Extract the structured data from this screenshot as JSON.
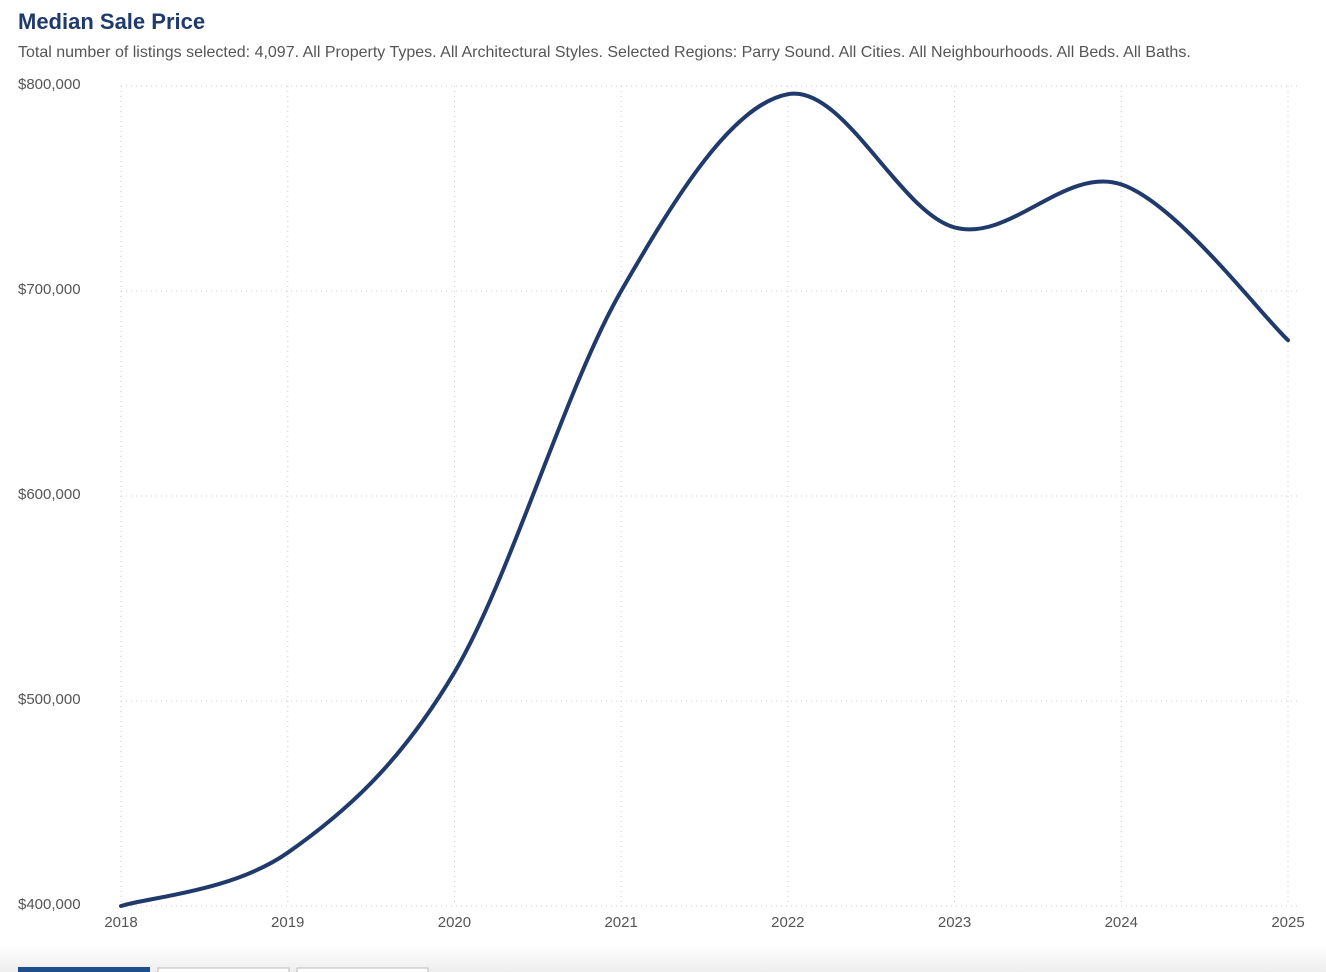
{
  "chart_data": {
    "type": "line",
    "title": "Median Sale Price",
    "subtitle": "Total number of listings selected: 4,097. All Property Types. All Architectural Styles. Selected Regions: Parry Sound. All Cities. All Neighbourhoods. All Beds. All Baths.",
    "x": [
      2018,
      2019,
      2020,
      2021,
      2022,
      2023,
      2024,
      2025
    ],
    "series": [
      {
        "name": "Median Sale Price",
        "color": "#1f3a6b",
        "values": [
          400000,
          426000,
          514000,
          700000,
          796000,
          731000,
          752000,
          676000
        ]
      }
    ],
    "xlim": [
      2018,
      2025
    ],
    "xticks": [
      2018,
      2019,
      2020,
      2021,
      2022,
      2023,
      2024,
      2025
    ],
    "ylim": [
      400000,
      800000
    ],
    "yticks": [
      {
        "value": 400000,
        "label": "$400,000"
      },
      {
        "value": 500000,
        "label": "$500,000"
      },
      {
        "value": 600000,
        "label": "$600,000"
      },
      {
        "value": 700000,
        "label": "$700,000"
      },
      {
        "value": 800000,
        "label": "$800,000"
      }
    ],
    "grid": true
  }
}
